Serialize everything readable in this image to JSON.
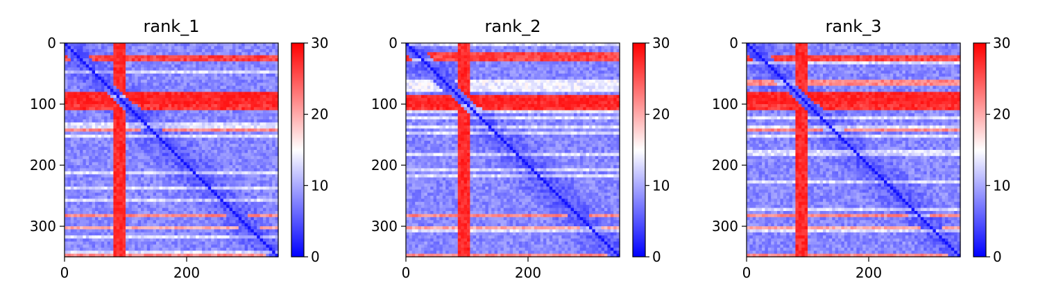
{
  "chart_data": [
    {
      "type": "heatmap",
      "title": "rank_1",
      "matrix_size": 350,
      "xlim": [
        0,
        350
      ],
      "ylim": [
        350,
        0
      ],
      "xticks": [
        0,
        200
      ],
      "yticks": [
        0,
        100,
        200,
        300
      ],
      "colorbar": {
        "min": 0,
        "max": 30,
        "ticks": [
          0,
          10,
          20,
          30
        ],
        "colormap": [
          "#0000ff",
          "#ffffff",
          "#ff0000"
        ]
      },
      "diagonal_value": 0,
      "row_bands": [
        {
          "from": 18,
          "to": 30,
          "value": 28,
          "x_from": 0,
          "x_to": 350
        },
        {
          "from": 82,
          "to": 112,
          "value": 29,
          "x_from": 0,
          "x_to": 350
        },
        {
          "from": 138,
          "to": 143,
          "value": 24,
          "x_from": 0,
          "x_to": 350
        },
        {
          "from": 278,
          "to": 285,
          "value": 24,
          "x_from": 0,
          "x_to": 350
        },
        {
          "from": 300,
          "to": 306,
          "value": 22,
          "x_from": 0,
          "x_to": 350
        },
        {
          "from": 343,
          "to": 350,
          "value": 24,
          "x_from": 0,
          "x_to": 350
        }
      ],
      "col_bands": [
        {
          "from": 82,
          "to": 102,
          "value": 29
        }
      ]
    },
    {
      "type": "heatmap",
      "title": "rank_2",
      "matrix_size": 350,
      "xlim": [
        0,
        350
      ],
      "ylim": [
        350,
        0
      ],
      "xticks": [
        0,
        200
      ],
      "yticks": [
        0,
        100,
        200,
        300
      ],
      "colorbar": {
        "min": 0,
        "max": 30,
        "ticks": [
          0,
          10,
          20,
          30
        ],
        "colormap": [
          "#0000ff",
          "#ffffff",
          "#ff0000"
        ]
      },
      "diagonal_value": 0,
      "row_bands": [
        {
          "from": 15,
          "to": 30,
          "value": 28,
          "x_from": 0,
          "x_to": 350
        },
        {
          "from": 60,
          "to": 80,
          "value": 16,
          "x_from": 0,
          "x_to": 350
        },
        {
          "from": 88,
          "to": 112,
          "value": 29,
          "x_from": 0,
          "x_to": 350
        },
        {
          "from": 278,
          "to": 285,
          "value": 24,
          "x_from": 0,
          "x_to": 350
        },
        {
          "from": 300,
          "to": 306,
          "value": 22,
          "x_from": 0,
          "x_to": 350
        },
        {
          "from": 343,
          "to": 350,
          "value": 24,
          "x_from": 0,
          "x_to": 350
        }
      ],
      "col_bands": [
        {
          "from": 85,
          "to": 105,
          "value": 29
        }
      ]
    },
    {
      "type": "heatmap",
      "title": "rank_3",
      "matrix_size": 350,
      "xlim": [
        0,
        350
      ],
      "ylim": [
        350,
        0
      ],
      "xticks": [
        0,
        200
      ],
      "yticks": [
        0,
        100,
        200,
        300
      ],
      "colorbar": {
        "min": 0,
        "max": 30,
        "ticks": [
          0,
          10,
          20,
          30
        ],
        "colormap": [
          "#0000ff",
          "#ffffff",
          "#ff0000"
        ]
      },
      "diagonal_value": 0,
      "row_bands": [
        {
          "from": 18,
          "to": 30,
          "value": 28,
          "x_from": 0,
          "x_to": 350
        },
        {
          "from": 60,
          "to": 70,
          "value": 24,
          "x_from": 0,
          "x_to": 350
        },
        {
          "from": 80,
          "to": 112,
          "value": 29,
          "x_from": 0,
          "x_to": 350
        },
        {
          "from": 138,
          "to": 143,
          "value": 24,
          "x_from": 0,
          "x_to": 350
        },
        {
          "from": 278,
          "to": 285,
          "value": 24,
          "x_from": 0,
          "x_to": 350
        },
        {
          "from": 300,
          "to": 306,
          "value": 22,
          "x_from": 0,
          "x_to": 350
        },
        {
          "from": 343,
          "to": 350,
          "value": 24,
          "x_from": 0,
          "x_to": 350
        }
      ],
      "col_bands": [
        {
          "from": 82,
          "to": 102,
          "value": 29
        }
      ]
    }
  ]
}
